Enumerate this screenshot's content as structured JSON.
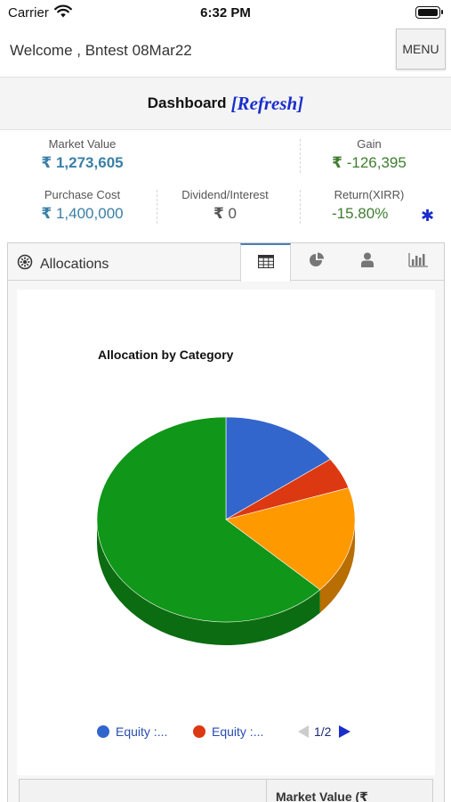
{
  "status_bar": {
    "carrier": "Carrier",
    "time": "6:32 PM"
  },
  "header": {
    "welcome": "Welcome , Bntest 08Mar22",
    "menu_label": "MENU"
  },
  "dashboard": {
    "title": "Dashboard",
    "refresh_label": "[Refresh]"
  },
  "summary": {
    "market_value": {
      "label": "Market Value",
      "currency": "₹",
      "value": "1,273,605"
    },
    "gain": {
      "label": "Gain",
      "currency": "₹",
      "value": "-126,395"
    },
    "purchase_cost": {
      "label": "Purchase Cost",
      "currency": "₹",
      "value": "1,400,000"
    },
    "dividend_interest": {
      "label": "Dividend/Interest",
      "currency": "₹",
      "value": "0"
    },
    "return_xirr": {
      "label": "Return(XIRR)",
      "value": "-15.80%",
      "info_icon": "asterisk-icon"
    }
  },
  "allocations": {
    "title": "Allocations",
    "tabs": [
      {
        "name": "table-icon",
        "active": true
      },
      {
        "name": "pie-chart-icon",
        "active": false
      },
      {
        "name": "person-icon",
        "active": false
      },
      {
        "name": "bar-chart-icon",
        "active": false
      }
    ]
  },
  "chart_data": {
    "type": "pie",
    "title": "Allocation by Category",
    "style": "3d",
    "slices": [
      {
        "label": "Equity :...",
        "value": 0.15,
        "color": "#3366cc"
      },
      {
        "label": "Equity :...",
        "value": 0.05,
        "color": "#dc3912"
      },
      {
        "label": "",
        "value": 0.17,
        "color": "#ff9900"
      },
      {
        "label": "",
        "value": 0.63,
        "color": "#109618"
      }
    ],
    "legend": {
      "position": "bottom",
      "page": "1/2"
    }
  },
  "table": {
    "market_value_header": "Market Value (₹"
  }
}
